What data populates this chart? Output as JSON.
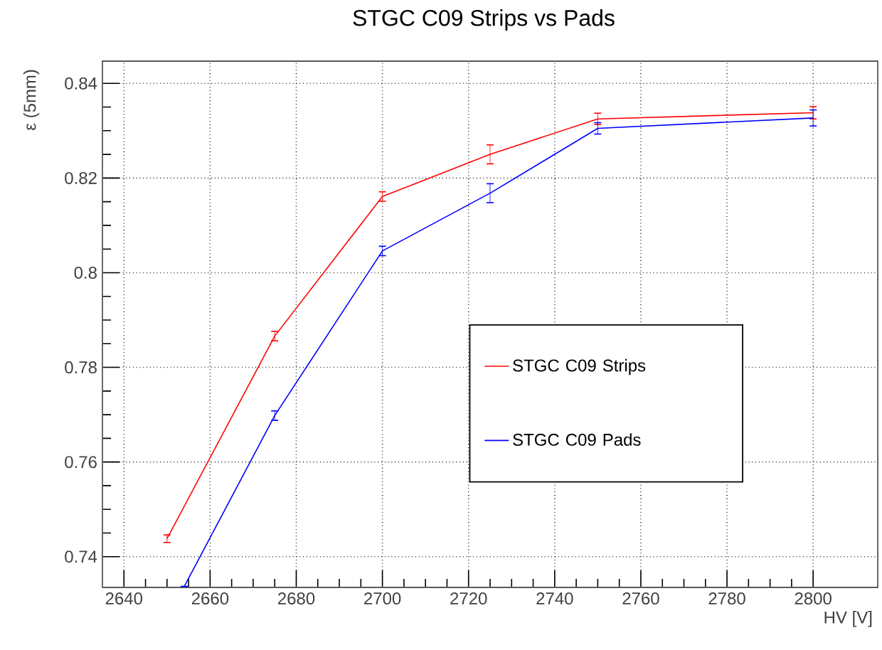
{
  "chart_data": {
    "type": "line",
    "title": "STGC C09 Strips vs Pads",
    "xlabel": "HV [V]",
    "ylabel": "ε (5mm)",
    "xlim": [
      2635,
      2815
    ],
    "xticks": [
      2640,
      2660,
      2680,
      2700,
      2720,
      2740,
      2760,
      2780,
      2800
    ],
    "ylim": [
      0.7335,
      0.8447
    ],
    "yticks": [
      0.74,
      0.76,
      0.78,
      {
        "value": 0.8,
        "label": "0.8"
      },
      0.82,
      0.84
    ],
    "grid": true,
    "legend": "bottom right",
    "marker": "none",
    "line_style": "solid",
    "series": [
      {
        "name": "STGC C09 Strips",
        "color": "#ff0000",
        "x": [
          2650,
          2675,
          2700,
          2725,
          2750,
          2800
        ],
        "values": [
          0.7438,
          0.7866,
          0.8161,
          0.825,
          0.8325,
          0.8338
        ],
        "errors": [
          0.0008,
          0.001,
          0.001,
          0.002,
          0.0012,
          0.0013
        ]
      },
      {
        "name": "STGC C09 Pads",
        "color": "#0000ff",
        "x": [
          2654,
          2675,
          2700,
          2725,
          2750,
          2800
        ],
        "values": [
          0.7337,
          0.7698,
          0.8046,
          0.8168,
          0.8305,
          0.8327
        ],
        "errors": [
          null,
          0.001,
          0.001,
          0.002,
          0.0012,
          0.0017
        ]
      }
    ]
  }
}
